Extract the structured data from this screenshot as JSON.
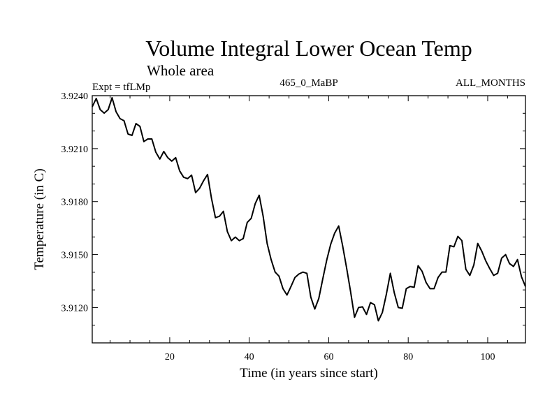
{
  "chart_data": {
    "type": "line",
    "title": "Volume Integral Lower Ocean Temp",
    "subtitle": "Whole area",
    "info_left": "Expt = tfLMp",
    "info_center": "465_0_MaBP",
    "info_right": "ALL_MONTHS",
    "xlabel": "Time (in years since start)",
    "ylabel": "Temperature (in C)",
    "xlim": [
      0.5,
      109.5
    ],
    "ylim": [
      3.91,
      3.924
    ],
    "x_major_ticks": [
      20,
      40,
      60,
      80,
      100
    ],
    "x_tick_labels": [
      "20",
      "40",
      "60",
      "80",
      "100"
    ],
    "x_minor_step": 5,
    "y_major_ticks": [
      3.912,
      3.915,
      3.918,
      3.921,
      3.924
    ],
    "y_tick_labels": [
      "3.9120",
      "3.9150",
      "3.9180",
      "3.9210",
      "3.9240"
    ],
    "y_minor_step": 0.001,
    "grid": false,
    "line_color": "#000000",
    "series": [
      {
        "name": "Volume Integral Lower Ocean Temp",
        "x_start": 0.5,
        "x_step": 1,
        "values": [
          3.92337,
          3.92384,
          3.92321,
          3.92301,
          3.92321,
          3.92388,
          3.92309,
          3.9227,
          3.92258,
          3.92183,
          3.92175,
          3.92242,
          3.92226,
          3.9214,
          3.92155,
          3.92155,
          3.9208,
          3.92041,
          3.92084,
          3.92049,
          3.92029,
          3.92049,
          3.91974,
          3.91938,
          3.9193,
          3.9195,
          3.91851,
          3.91875,
          3.91918,
          3.91954,
          3.9182,
          3.91709,
          3.91717,
          3.91745,
          3.9163,
          3.91579,
          3.91599,
          3.91579,
          3.91591,
          3.91682,
          3.91705,
          3.91788,
          3.91836,
          3.91717,
          3.91563,
          3.91472,
          3.91401,
          3.91378,
          3.91307,
          3.91271,
          3.91319,
          3.9137,
          3.9139,
          3.91401,
          3.91394,
          3.91259,
          3.91192,
          3.91251,
          3.91362,
          3.91469,
          3.91559,
          3.91622,
          3.91662,
          3.91551,
          3.91425,
          3.91291,
          3.91145,
          3.912,
          3.91204,
          3.91161,
          3.91228,
          3.91216,
          3.91125,
          3.91172,
          3.91275,
          3.91394,
          3.91283,
          3.912,
          3.91196,
          3.91307,
          3.91319,
          3.91315,
          3.91437,
          3.91405,
          3.91342,
          3.91307,
          3.91307,
          3.9137,
          3.91401,
          3.91401,
          3.91551,
          3.91544,
          3.91603,
          3.91579,
          3.91417,
          3.91382,
          3.91441,
          3.91563,
          3.9152,
          3.91465,
          3.91421,
          3.91382,
          3.91394,
          3.9148,
          3.915,
          3.91449,
          3.91433,
          3.91472,
          3.91374,
          3.91319
        ]
      }
    ]
  }
}
